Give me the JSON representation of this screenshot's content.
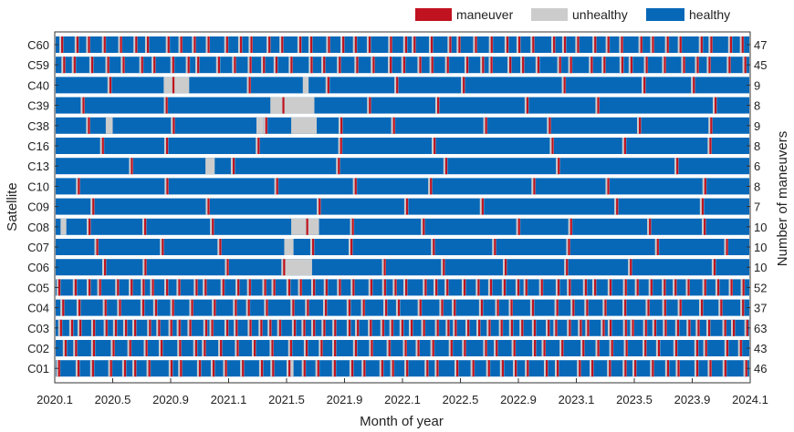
{
  "chart_data": {
    "type": "timeline",
    "xlabel": "Month of year",
    "ylabel_left": "Satellite",
    "ylabel_right": "Number of maneuvers",
    "x_ticks": [
      "2020.1",
      "2020.5",
      "2020.9",
      "2021.1",
      "2021.5",
      "2021.9",
      "2022.1",
      "2022.5",
      "2022.9",
      "2023.1",
      "2023.5",
      "2023.9",
      "2024.1"
    ],
    "legend": [
      {
        "key": "maneuver",
        "label": "maneuver",
        "color": "#c0121f"
      },
      {
        "key": "unhealthy",
        "label": "unhealthy",
        "color": "#cccccc"
      },
      {
        "key": "healthy",
        "label": "healthy",
        "color": "#0868b8"
      }
    ],
    "satellites": [
      {
        "name": "C60",
        "maneuvers": 47,
        "unhealthy_spans": []
      },
      {
        "name": "C59",
        "maneuvers": 45,
        "unhealthy_spans": []
      },
      {
        "name": "C40",
        "maneuvers": 9,
        "unhealthy_spans": [
          [
            1.88,
            2.32
          ],
          [
            4.28,
            4.38
          ]
        ]
      },
      {
        "name": "C39",
        "maneuvers": 8,
        "unhealthy_spans": [
          [
            3.72,
            4.48
          ]
        ]
      },
      {
        "name": "C38",
        "maneuvers": 9,
        "unhealthy_spans": [
          [
            0.88,
            1.0
          ],
          [
            3.48,
            3.6
          ],
          [
            4.08,
            4.52
          ]
        ]
      },
      {
        "name": "C16",
        "maneuvers": 8,
        "unhealthy_spans": []
      },
      {
        "name": "C13",
        "maneuvers": 6,
        "unhealthy_spans": [
          [
            2.6,
            2.76
          ]
        ]
      },
      {
        "name": "C10",
        "maneuvers": 8,
        "unhealthy_spans": []
      },
      {
        "name": "C09",
        "maneuvers": 7,
        "unhealthy_spans": []
      },
      {
        "name": "C08",
        "maneuvers": 10,
        "unhealthy_spans": [
          [
            0.1,
            0.2
          ],
          [
            4.08,
            4.56
          ]
        ]
      },
      {
        "name": "C07",
        "maneuvers": 10,
        "unhealthy_spans": [
          [
            3.96,
            4.12
          ]
        ]
      },
      {
        "name": "C06",
        "maneuvers": 10,
        "unhealthy_spans": [
          [
            3.96,
            4.44
          ]
        ]
      },
      {
        "name": "C05",
        "maneuvers": 52,
        "unhealthy_spans": []
      },
      {
        "name": "C04",
        "maneuvers": 37,
        "unhealthy_spans": []
      },
      {
        "name": "C03",
        "maneuvers": 63,
        "unhealthy_spans": []
      },
      {
        "name": "C02",
        "maneuvers": 43,
        "unhealthy_spans": []
      },
      {
        "name": "C01",
        "maneuvers": 46,
        "unhealthy_spans": [
          [
            4.0,
            4.12
          ]
        ]
      }
    ]
  }
}
